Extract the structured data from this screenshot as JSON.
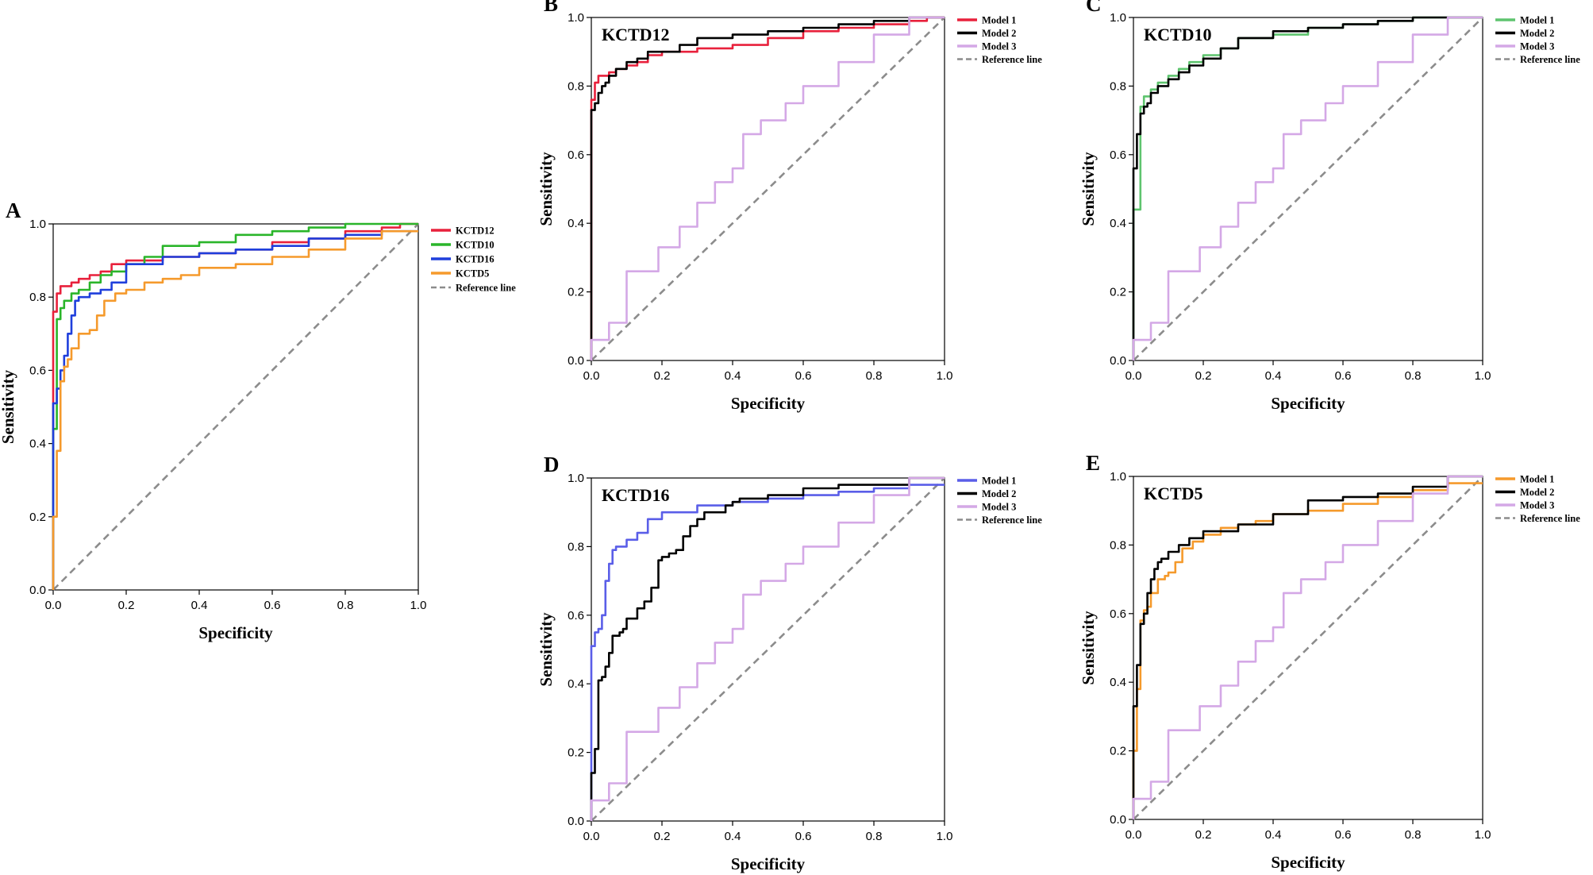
{
  "chart_data": [
    {
      "panel": "A",
      "type": "line",
      "title": "",
      "xlabel": "Specificity",
      "ylabel": "Sensitivity",
      "xlim": [
        0,
        1
      ],
      "ylim": [
        0,
        1
      ],
      "xticks": [
        "0.0",
        "0.2",
        "0.4",
        "0.6",
        "0.8",
        "1.0"
      ],
      "yticks": [
        "0.0",
        "0.2",
        "0.4",
        "0.6",
        "0.8",
        "1.0"
      ],
      "legend_position": "right-top",
      "series": [
        {
          "name": "KCTD12",
          "color": "#e8213c",
          "x": [
            0,
            0,
            0.01,
            0.01,
            0.02,
            0.03,
            0.05,
            0.07,
            0.1,
            0.13,
            0.16,
            0.2,
            0.25,
            0.3,
            0.4,
            0.5,
            0.6,
            0.7,
            0.8,
            0.9,
            0.95,
            1
          ],
          "y": [
            0,
            0.75,
            0.76,
            0.8,
            0.81,
            0.83,
            0.83,
            0.84,
            0.85,
            0.86,
            0.87,
            0.89,
            0.9,
            0.9,
            0.91,
            0.92,
            0.93,
            0.95,
            0.96,
            0.98,
            0.99,
            1
          ]
        },
        {
          "name": "KCTD10",
          "color": "#2ab52a",
          "x": [
            0,
            0.01,
            0.01,
            0.02,
            0.03,
            0.05,
            0.07,
            0.1,
            0.13,
            0.16,
            0.2,
            0.25,
            0.3,
            0.4,
            0.5,
            0.6,
            0.7,
            0.8,
            0.9,
            1
          ],
          "y": [
            0,
            0.44,
            0.7,
            0.74,
            0.77,
            0.79,
            0.81,
            0.82,
            0.84,
            0.86,
            0.87,
            0.89,
            0.91,
            0.94,
            0.95,
            0.97,
            0.98,
            0.99,
            1,
            1
          ]
        },
        {
          "name": "KCTD16",
          "color": "#1f3fdc",
          "x": [
            0,
            0,
            0.01,
            0.02,
            0.03,
            0.04,
            0.05,
            0.06,
            0.07,
            0.08,
            0.1,
            0.13,
            0.16,
            0.2,
            0.3,
            0.4,
            0.5,
            0.6,
            0.7,
            0.8,
            0.9,
            1
          ],
          "y": [
            0,
            0.51,
            0.51,
            0.55,
            0.6,
            0.64,
            0.7,
            0.75,
            0.79,
            0.8,
            0.8,
            0.81,
            0.82,
            0.84,
            0.89,
            0.91,
            0.92,
            0.93,
            0.94,
            0.96,
            0.97,
            0.98
          ]
        },
        {
          "name": "KCTD5",
          "color": "#f59a2c",
          "x": [
            0,
            0.01,
            0.02,
            0.03,
            0.04,
            0.05,
            0.07,
            0.09,
            0.1,
            0.12,
            0.14,
            0.17,
            0.2,
            0.25,
            0.3,
            0.35,
            0.4,
            0.5,
            0.6,
            0.7,
            0.8,
            0.9,
            1
          ],
          "y": [
            0,
            0.2,
            0.38,
            0.57,
            0.61,
            0.63,
            0.66,
            0.7,
            0.7,
            0.71,
            0.75,
            0.79,
            0.81,
            0.82,
            0.84,
            0.85,
            0.86,
            0.88,
            0.89,
            0.91,
            0.93,
            0.96,
            0.98
          ]
        },
        {
          "name": "Reference line",
          "color": "#8c8c8c",
          "dashed": true,
          "x": [
            0,
            1
          ],
          "y": [
            0,
            1
          ]
        }
      ]
    },
    {
      "panel": "B",
      "type": "line",
      "title": "KCTD12",
      "xlabel": "Specificity",
      "ylabel": "Sensitivity",
      "xlim": [
        0,
        1
      ],
      "ylim": [
        0,
        1
      ],
      "xticks": [
        "0.0",
        "0.2",
        "0.4",
        "0.6",
        "0.8",
        "1.0"
      ],
      "yticks": [
        "0.0",
        "0.2",
        "0.4",
        "0.6",
        "0.8",
        "1.0"
      ],
      "legend_position": "right-top",
      "series": [
        {
          "name": "Model 1",
          "color": "#e8213c",
          "x": [
            0,
            0,
            0.01,
            0.01,
            0.02,
            0.03,
            0.05,
            0.07,
            0.1,
            0.13,
            0.16,
            0.2,
            0.25,
            0.3,
            0.4,
            0.5,
            0.6,
            0.7,
            0.8,
            0.9,
            0.95,
            1
          ],
          "y": [
            0,
            0.75,
            0.76,
            0.8,
            0.81,
            0.83,
            0.83,
            0.84,
            0.85,
            0.86,
            0.87,
            0.89,
            0.9,
            0.9,
            0.91,
            0.92,
            0.94,
            0.96,
            0.97,
            0.98,
            0.99,
            1
          ]
        },
        {
          "name": "Model 2",
          "color": "#000000",
          "x": [
            0,
            0,
            0.01,
            0.02,
            0.03,
            0.04,
            0.05,
            0.07,
            0.1,
            0.13,
            0.16,
            0.2,
            0.25,
            0.3,
            0.4,
            0.5,
            0.6,
            0.7,
            0.8,
            0.9,
            1
          ],
          "y": [
            0,
            0.72,
            0.73,
            0.75,
            0.78,
            0.8,
            0.81,
            0.83,
            0.85,
            0.87,
            0.88,
            0.9,
            0.9,
            0.92,
            0.94,
            0.95,
            0.96,
            0.97,
            0.98,
            0.99,
            1
          ]
        },
        {
          "name": "Model 3",
          "color": "#d4a8e6",
          "x": [
            0,
            0.05,
            0.1,
            0.19,
            0.25,
            0.3,
            0.35,
            0.4,
            0.43,
            0.48,
            0.55,
            0.6,
            0.7,
            0.8,
            0.9,
            1
          ],
          "y": [
            0,
            0.06,
            0.11,
            0.26,
            0.33,
            0.39,
            0.46,
            0.52,
            0.56,
            0.66,
            0.7,
            0.75,
            0.8,
            0.87,
            0.95,
            1
          ]
        },
        {
          "name": "Reference line",
          "color": "#8c8c8c",
          "dashed": true,
          "x": [
            0,
            1
          ],
          "y": [
            0,
            1
          ]
        }
      ]
    },
    {
      "panel": "C",
      "type": "line",
      "title": "KCTD10",
      "xlabel": "Specificity",
      "ylabel": "Sensitivity",
      "xlim": [
        0,
        1
      ],
      "ylim": [
        0,
        1
      ],
      "xticks": [
        "0.0",
        "0.2",
        "0.4",
        "0.6",
        "0.8",
        "1.0"
      ],
      "yticks": [
        "0.0",
        "0.2",
        "0.4",
        "0.6",
        "0.8",
        "1.0"
      ],
      "legend_position": "right-top",
      "series": [
        {
          "name": "Model 1",
          "color": "#5ec46e",
          "x": [
            0,
            0.01,
            0.02,
            0.02,
            0.03,
            0.05,
            0.07,
            0.1,
            0.13,
            0.16,
            0.2,
            0.25,
            0.3,
            0.4,
            0.5,
            0.6,
            0.7,
            0.8,
            0.9,
            1
          ],
          "y": [
            0,
            0.44,
            0.44,
            0.7,
            0.74,
            0.77,
            0.79,
            0.81,
            0.83,
            0.85,
            0.87,
            0.89,
            0.91,
            0.94,
            0.95,
            0.97,
            0.98,
            0.99,
            1,
            1
          ]
        },
        {
          "name": "Model 2",
          "color": "#000000",
          "x": [
            0,
            0,
            0.01,
            0.02,
            0.03,
            0.04,
            0.05,
            0.07,
            0.1,
            0.13,
            0.16,
            0.2,
            0.25,
            0.3,
            0.4,
            0.5,
            0.6,
            0.7,
            0.8,
            0.9,
            1
          ],
          "y": [
            0,
            0.56,
            0.56,
            0.66,
            0.72,
            0.74,
            0.75,
            0.78,
            0.8,
            0.82,
            0.84,
            0.86,
            0.88,
            0.91,
            0.94,
            0.96,
            0.97,
            0.98,
            0.99,
            1,
            1
          ]
        },
        {
          "name": "Model 3",
          "color": "#d4a8e6",
          "x": [
            0,
            0.05,
            0.1,
            0.19,
            0.25,
            0.3,
            0.35,
            0.4,
            0.43,
            0.48,
            0.55,
            0.6,
            0.7,
            0.8,
            0.9,
            1
          ],
          "y": [
            0,
            0.06,
            0.11,
            0.26,
            0.33,
            0.39,
            0.46,
            0.52,
            0.56,
            0.66,
            0.7,
            0.75,
            0.8,
            0.87,
            0.95,
            1
          ]
        },
        {
          "name": "Reference line",
          "color": "#8c8c8c",
          "dashed": true,
          "x": [
            0,
            1
          ],
          "y": [
            0,
            1
          ]
        }
      ]
    },
    {
      "panel": "D",
      "type": "line",
      "title": "KCTD16",
      "xlabel": "Specificity",
      "ylabel": "Sensitivity",
      "xlim": [
        0,
        1
      ],
      "ylim": [
        0,
        1
      ],
      "xticks": [
        "0.0",
        "0.2",
        "0.4",
        "0.6",
        "0.8",
        "1.0"
      ],
      "yticks": [
        "0.0",
        "0.2",
        "0.4",
        "0.6",
        "0.8",
        "1.0"
      ],
      "legend_position": "right-top",
      "series": [
        {
          "name": "Model 1",
          "color": "#5a5ee8",
          "x": [
            0,
            0,
            0.01,
            0.02,
            0.03,
            0.04,
            0.05,
            0.06,
            0.07,
            0.08,
            0.1,
            0.13,
            0.16,
            0.2,
            0.3,
            0.4,
            0.5,
            0.6,
            0.7,
            0.8,
            0.9,
            1
          ],
          "y": [
            0,
            0.51,
            0.51,
            0.55,
            0.56,
            0.6,
            0.7,
            0.75,
            0.79,
            0.8,
            0.8,
            0.82,
            0.84,
            0.88,
            0.9,
            0.92,
            0.93,
            0.94,
            0.95,
            0.96,
            0.97,
            0.98
          ]
        },
        {
          "name": "Model 2",
          "color": "#000000",
          "x": [
            0,
            0.01,
            0.02,
            0.03,
            0.04,
            0.05,
            0.06,
            0.08,
            0.09,
            0.1,
            0.13,
            0.15,
            0.17,
            0.19,
            0.2,
            0.22,
            0.24,
            0.26,
            0.28,
            0.3,
            0.32,
            0.35,
            0.38,
            0.4,
            0.42,
            0.45,
            0.5,
            0.6,
            0.7,
            0.8,
            0.9,
            1
          ],
          "y": [
            0,
            0.14,
            0.21,
            0.41,
            0.42,
            0.45,
            0.49,
            0.54,
            0.55,
            0.56,
            0.59,
            0.62,
            0.64,
            0.68,
            0.76,
            0.77,
            0.78,
            0.79,
            0.83,
            0.86,
            0.88,
            0.9,
            0.9,
            0.92,
            0.93,
            0.94,
            0.94,
            0.95,
            0.97,
            0.98,
            0.98,
            1
          ]
        },
        {
          "name": "Model 3",
          "color": "#d4a8e6",
          "x": [
            0,
            0.05,
            0.1,
            0.19,
            0.25,
            0.3,
            0.35,
            0.4,
            0.43,
            0.48,
            0.55,
            0.6,
            0.7,
            0.8,
            0.9,
            1
          ],
          "y": [
            0,
            0.06,
            0.11,
            0.26,
            0.33,
            0.39,
            0.46,
            0.52,
            0.56,
            0.66,
            0.7,
            0.75,
            0.8,
            0.87,
            0.95,
            1
          ]
        },
        {
          "name": "Reference line",
          "color": "#8c8c8c",
          "dashed": true,
          "x": [
            0,
            1
          ],
          "y": [
            0,
            1
          ]
        }
      ]
    },
    {
      "panel": "E",
      "type": "line",
      "title": "KCTD5",
      "xlabel": "Specificity",
      "ylabel": "Sensitivity",
      "xlim": [
        0,
        1
      ],
      "ylim": [
        0,
        1
      ],
      "xticks": [
        "0.0",
        "0.2",
        "0.4",
        "0.6",
        "0.8",
        "1.0"
      ],
      "yticks": [
        "0.0",
        "0.2",
        "0.4",
        "0.6",
        "0.8",
        "1.0"
      ],
      "legend_position": "right-top",
      "series": [
        {
          "name": "Model 1",
          "color": "#f59a2c",
          "x": [
            0,
            0.01,
            0.02,
            0.03,
            0.04,
            0.05,
            0.07,
            0.09,
            0.1,
            0.12,
            0.14,
            0.17,
            0.2,
            0.25,
            0.3,
            0.35,
            0.4,
            0.5,
            0.6,
            0.7,
            0.8,
            0.9,
            1
          ],
          "y": [
            0,
            0.2,
            0.38,
            0.58,
            0.61,
            0.62,
            0.66,
            0.7,
            0.71,
            0.72,
            0.75,
            0.79,
            0.81,
            0.83,
            0.85,
            0.86,
            0.87,
            0.89,
            0.9,
            0.92,
            0.94,
            0.96,
            0.98
          ]
        },
        {
          "name": "Model 2",
          "color": "#000000",
          "x": [
            0,
            0,
            0.01,
            0.02,
            0.03,
            0.04,
            0.05,
            0.06,
            0.07,
            0.08,
            0.1,
            0.13,
            0.16,
            0.2,
            0.3,
            0.4,
            0.5,
            0.6,
            0.7,
            0.8,
            0.9,
            1
          ],
          "y": [
            0,
            0.15,
            0.33,
            0.45,
            0.57,
            0.6,
            0.66,
            0.7,
            0.73,
            0.75,
            0.76,
            0.78,
            0.8,
            0.82,
            0.84,
            0.86,
            0.89,
            0.93,
            0.94,
            0.95,
            0.97,
            1
          ]
        },
        {
          "name": "Model 3",
          "color": "#d4a8e6",
          "x": [
            0,
            0.05,
            0.1,
            0.19,
            0.25,
            0.3,
            0.35,
            0.4,
            0.43,
            0.48,
            0.55,
            0.6,
            0.7,
            0.8,
            0.9,
            1
          ],
          "y": [
            0,
            0.06,
            0.11,
            0.26,
            0.33,
            0.39,
            0.46,
            0.52,
            0.56,
            0.66,
            0.7,
            0.75,
            0.8,
            0.87,
            0.95,
            1
          ]
        },
        {
          "name": "Reference line",
          "color": "#8c8c8c",
          "dashed": true,
          "x": [
            0,
            1
          ],
          "y": [
            0,
            1
          ]
        }
      ]
    }
  ]
}
